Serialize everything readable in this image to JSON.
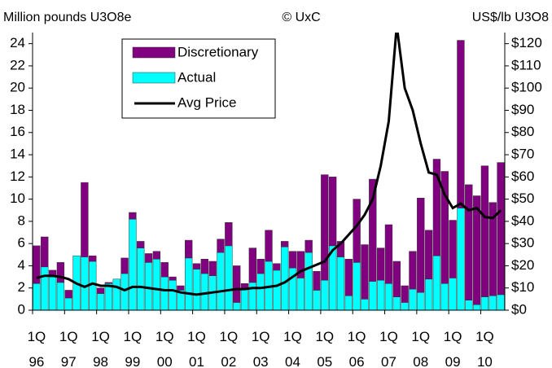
{
  "chart_data": {
    "type": "bar",
    "stacked": true,
    "left_label": "Million pounds U3O8e",
    "source": "© UxC",
    "right_label": "US$/lb U3O8",
    "categories": [
      "1Q\n96",
      null,
      null,
      null,
      "1Q\n97",
      null,
      null,
      null,
      "1Q\n98",
      null,
      null,
      null,
      "1Q\n99",
      null,
      null,
      null,
      "1Q\n00",
      null,
      null,
      null,
      "1Q\n01",
      null,
      null,
      null,
      "1Q\n02",
      null,
      null,
      null,
      "1Q\n03",
      null,
      null,
      null,
      "1Q\n04",
      null,
      null,
      null,
      "1Q\n05",
      null,
      null,
      null,
      "1Q\n06",
      null,
      null,
      null,
      "1Q\n07",
      null,
      null,
      null,
      "1Q\n08",
      null,
      null,
      null,
      "1Q\n09",
      null,
      null,
      null,
      "1Q\n10",
      null,
      null
    ],
    "series": [
      {
        "name": "Actual",
        "color": "#00ffff",
        "values": [
          2.4,
          3.9,
          3.0,
          2.5,
          1.1,
          4.9,
          4.8,
          4.4,
          1.5,
          2.4,
          2.8,
          3.3,
          8.2,
          5.6,
          4.3,
          4.6,
          3.0,
          2.7,
          1.8,
          4.7,
          3.7,
          3.3,
          3.1,
          5.2,
          5.8,
          0.7,
          2.0,
          2.5,
          3.3,
          4.4,
          3.6,
          5.7,
          3.8,
          2.9,
          5.2,
          1.8,
          2.7,
          5.8,
          4.8,
          1.3,
          4.3,
          1.0,
          2.6,
          2.7,
          2.4,
          1.2,
          0.7,
          1.9,
          1.6,
          2.8,
          4.9,
          2.4,
          2.9,
          9.2,
          0.9,
          0.5,
          1.2,
          1.3,
          1.4
        ]
      },
      {
        "name": "Discretionary",
        "color": "#800080",
        "values": [
          3.4,
          2.7,
          0.6,
          1.8,
          0.7,
          0.0,
          6.7,
          0.5,
          0.5,
          0.1,
          0.0,
          1.4,
          0.6,
          0.6,
          0.8,
          0.7,
          1.3,
          0.3,
          0.4,
          1.6,
          0.5,
          1.3,
          1.3,
          1.2,
          2.1,
          3.3,
          0.4,
          3.1,
          1.3,
          2.8,
          0.6,
          0.5,
          1.5,
          2.4,
          1.1,
          1.7,
          9.5,
          6.2,
          1.4,
          3.3,
          5.7,
          4.9,
          9.2,
          2.9,
          5.3,
          3.2,
          1.5,
          3.4,
          8.5,
          4.4,
          8.7,
          10.1,
          5.2,
          15.1,
          10.4,
          9.8,
          11.8,
          8.4,
          11.9
        ]
      },
      {
        "name": "Avg Price",
        "type": "line",
        "axis": "y2",
        "color": "#000000",
        "values": [
          14.5,
          15.5,
          15.5,
          15,
          14,
          12,
          10.5,
          12,
          11,
          11,
          10.5,
          9,
          10.5,
          10.5,
          10,
          9.5,
          9,
          9,
          8,
          7.5,
          7,
          7.5,
          8,
          8.5,
          9,
          9.5,
          9.5,
          10,
          10,
          10.5,
          11,
          12.5,
          15,
          17.5,
          19,
          20.5,
          22,
          27,
          30,
          34,
          38,
          43,
          50,
          65,
          85,
          128,
          100,
          90,
          75,
          62,
          61,
          52,
          46,
          48,
          45,
          46,
          42,
          41.5,
          45
        ]
      }
    ],
    "legend_order": [
      "Discretionary",
      "Actual",
      "Avg Price"
    ],
    "ylim": [
      0,
      25
    ],
    "yticks": [
      0,
      2,
      4,
      6,
      8,
      10,
      12,
      14,
      16,
      18,
      20,
      22,
      24
    ],
    "y2lim": [
      0,
      125
    ],
    "y2ticks": [
      {
        "value": 0,
        "label": "$0"
      },
      {
        "value": 10,
        "label": "$10"
      },
      {
        "value": 20,
        "label": "$20"
      },
      {
        "value": 30,
        "label": "$30"
      },
      {
        "value": 40,
        "label": "$40"
      },
      {
        "value": 50,
        "label": "$50"
      },
      {
        "value": 60,
        "label": "$60"
      },
      {
        "value": 70,
        "label": "$70"
      },
      {
        "value": 80,
        "label": "$80"
      },
      {
        "value": 90,
        "label": "$90"
      },
      {
        "value": 100,
        "label": "$100"
      },
      {
        "value": 110,
        "label": "$110"
      },
      {
        "value": 120,
        "label": "$120"
      }
    ],
    "grid": false,
    "legend": "top-left"
  }
}
